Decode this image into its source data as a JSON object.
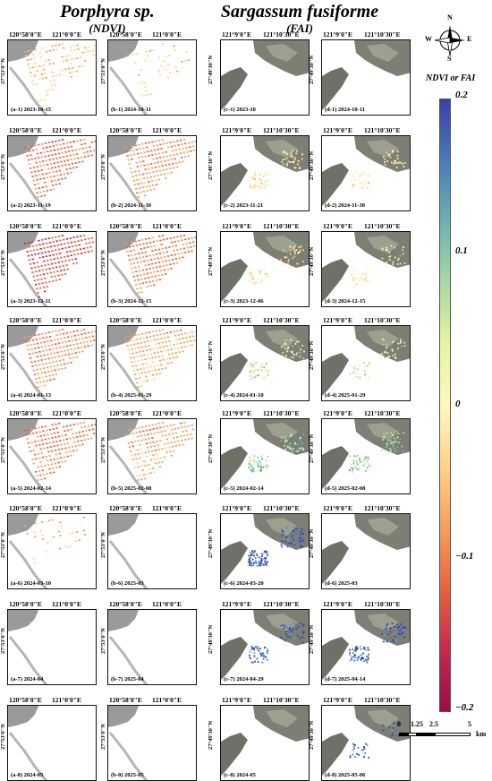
{
  "headers": {
    "porphyra": {
      "species": "Porphyra sp.",
      "index": "(NDVI)"
    },
    "sargassum": {
      "species": "Sargassum fusiforme",
      "index": "(FAI)"
    }
  },
  "porphyra_lon": {
    "a": "120°58'0\"E",
    "b": "121°0'0\"E"
  },
  "sargassum_lon": {
    "a": "121°9'0\"E",
    "b": "121°10'30\"E"
  },
  "porphyra_lat": "27°53'0\"N",
  "sargassum_lat": "27°49'30\"N",
  "panels": {
    "col_a": [
      "(a-1) 2023-10-15",
      "(a-2) 2023-11-19",
      "(a-3) 2023-12-11",
      "(a-4) 2024-01-13",
      "(a-5) 2024-02-14",
      "(a-6) 2024-03-10",
      "(a-7) 2024-04",
      "(a-8) 2024-05"
    ],
    "col_b": [
      "(b-1) 2024-10-11",
      "(b-2) 2024-11-30",
      "(b-3) 2024-12-15",
      "(b-4) 2025-01-29",
      "(b-5) 2025-02-08",
      "(b-6) 2025-03",
      "(b-7) 2025-04",
      "(b-8) 2025-05"
    ],
    "col_c": [
      "(c-1) 2023-10",
      "(c-2) 2023-11-21",
      "(c-3) 2023-12-06",
      "(c-4) 2024-01-10",
      "(c-5) 2024-02-14",
      "(c-6) 2024-03-20",
      "(c-7) 2024-04-29",
      "(c-8) 2024-05"
    ],
    "col_d": [
      "(d-1) 2024-10-11",
      "(d-2) 2024-11-30",
      "(d-3) 2024-12-15",
      "(d-4) 2025-01-29",
      "(d-5) 2025-02-08",
      "(d-6) 2025-03",
      "(d-7) 2025-04-14",
      "(d-8) 2025-05-06"
    ]
  },
  "porphyra_density": [
    0.5,
    0.9,
    0.9,
    0.95,
    0.9,
    0.15,
    0,
    0
  ],
  "porphyra_density_b": [
    0.25,
    0.9,
    0.9,
    0.9,
    0.85,
    0,
    0,
    0
  ],
  "porphyra_level": [
    0.35,
    0.6,
    0.7,
    0.5,
    0.55,
    0.35,
    0,
    0
  ],
  "sargassum_density": [
    0,
    0.4,
    0.4,
    0.5,
    0.6,
    0.8,
    0.5,
    0
  ],
  "sargassum_density_b": [
    0,
    0.3,
    0.3,
    0.3,
    0.5,
    0,
    0.6,
    0.2
  ],
  "sargassum_level": [
    0,
    0.48,
    0.48,
    0.62,
    0.72,
    0.95,
    0.95,
    0.95
  ],
  "compass": {
    "n": "N",
    "s": "S",
    "e": "E",
    "w": "W"
  },
  "colorbar": {
    "title": "NDVI or FAI",
    "ticks": [
      "0.2",
      "0.1",
      "0",
      "−0.1",
      "−0.2"
    ],
    "colors": [
      "#3b3fa8",
      "#4a7bb7",
      "#6db2b0",
      "#a8d8a4",
      "#e6f5a0",
      "#fff7c0",
      "#fed38a",
      "#f79f5c",
      "#e8623f",
      "#c42b4b",
      "#9a0c4a"
    ]
  },
  "scalebar": {
    "labels": [
      "0",
      "1.25",
      "2.5",
      "5"
    ],
    "unit": "km"
  }
}
